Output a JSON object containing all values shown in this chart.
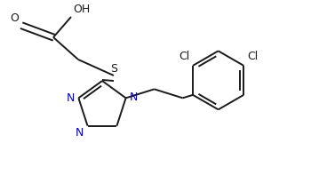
{
  "background_color": "#ffffff",
  "line_color": "#1a1a1a",
  "label_color_N": "#0000cd",
  "label_color_S": "#1a1a1a",
  "label_color_O": "#1a1a1a",
  "label_color_Cl": "#1a1a1a",
  "figsize": [
    3.59,
    1.97
  ],
  "dpi": 100,
  "xlim": [
    0,
    359
  ],
  "ylim": [
    0,
    197
  ]
}
